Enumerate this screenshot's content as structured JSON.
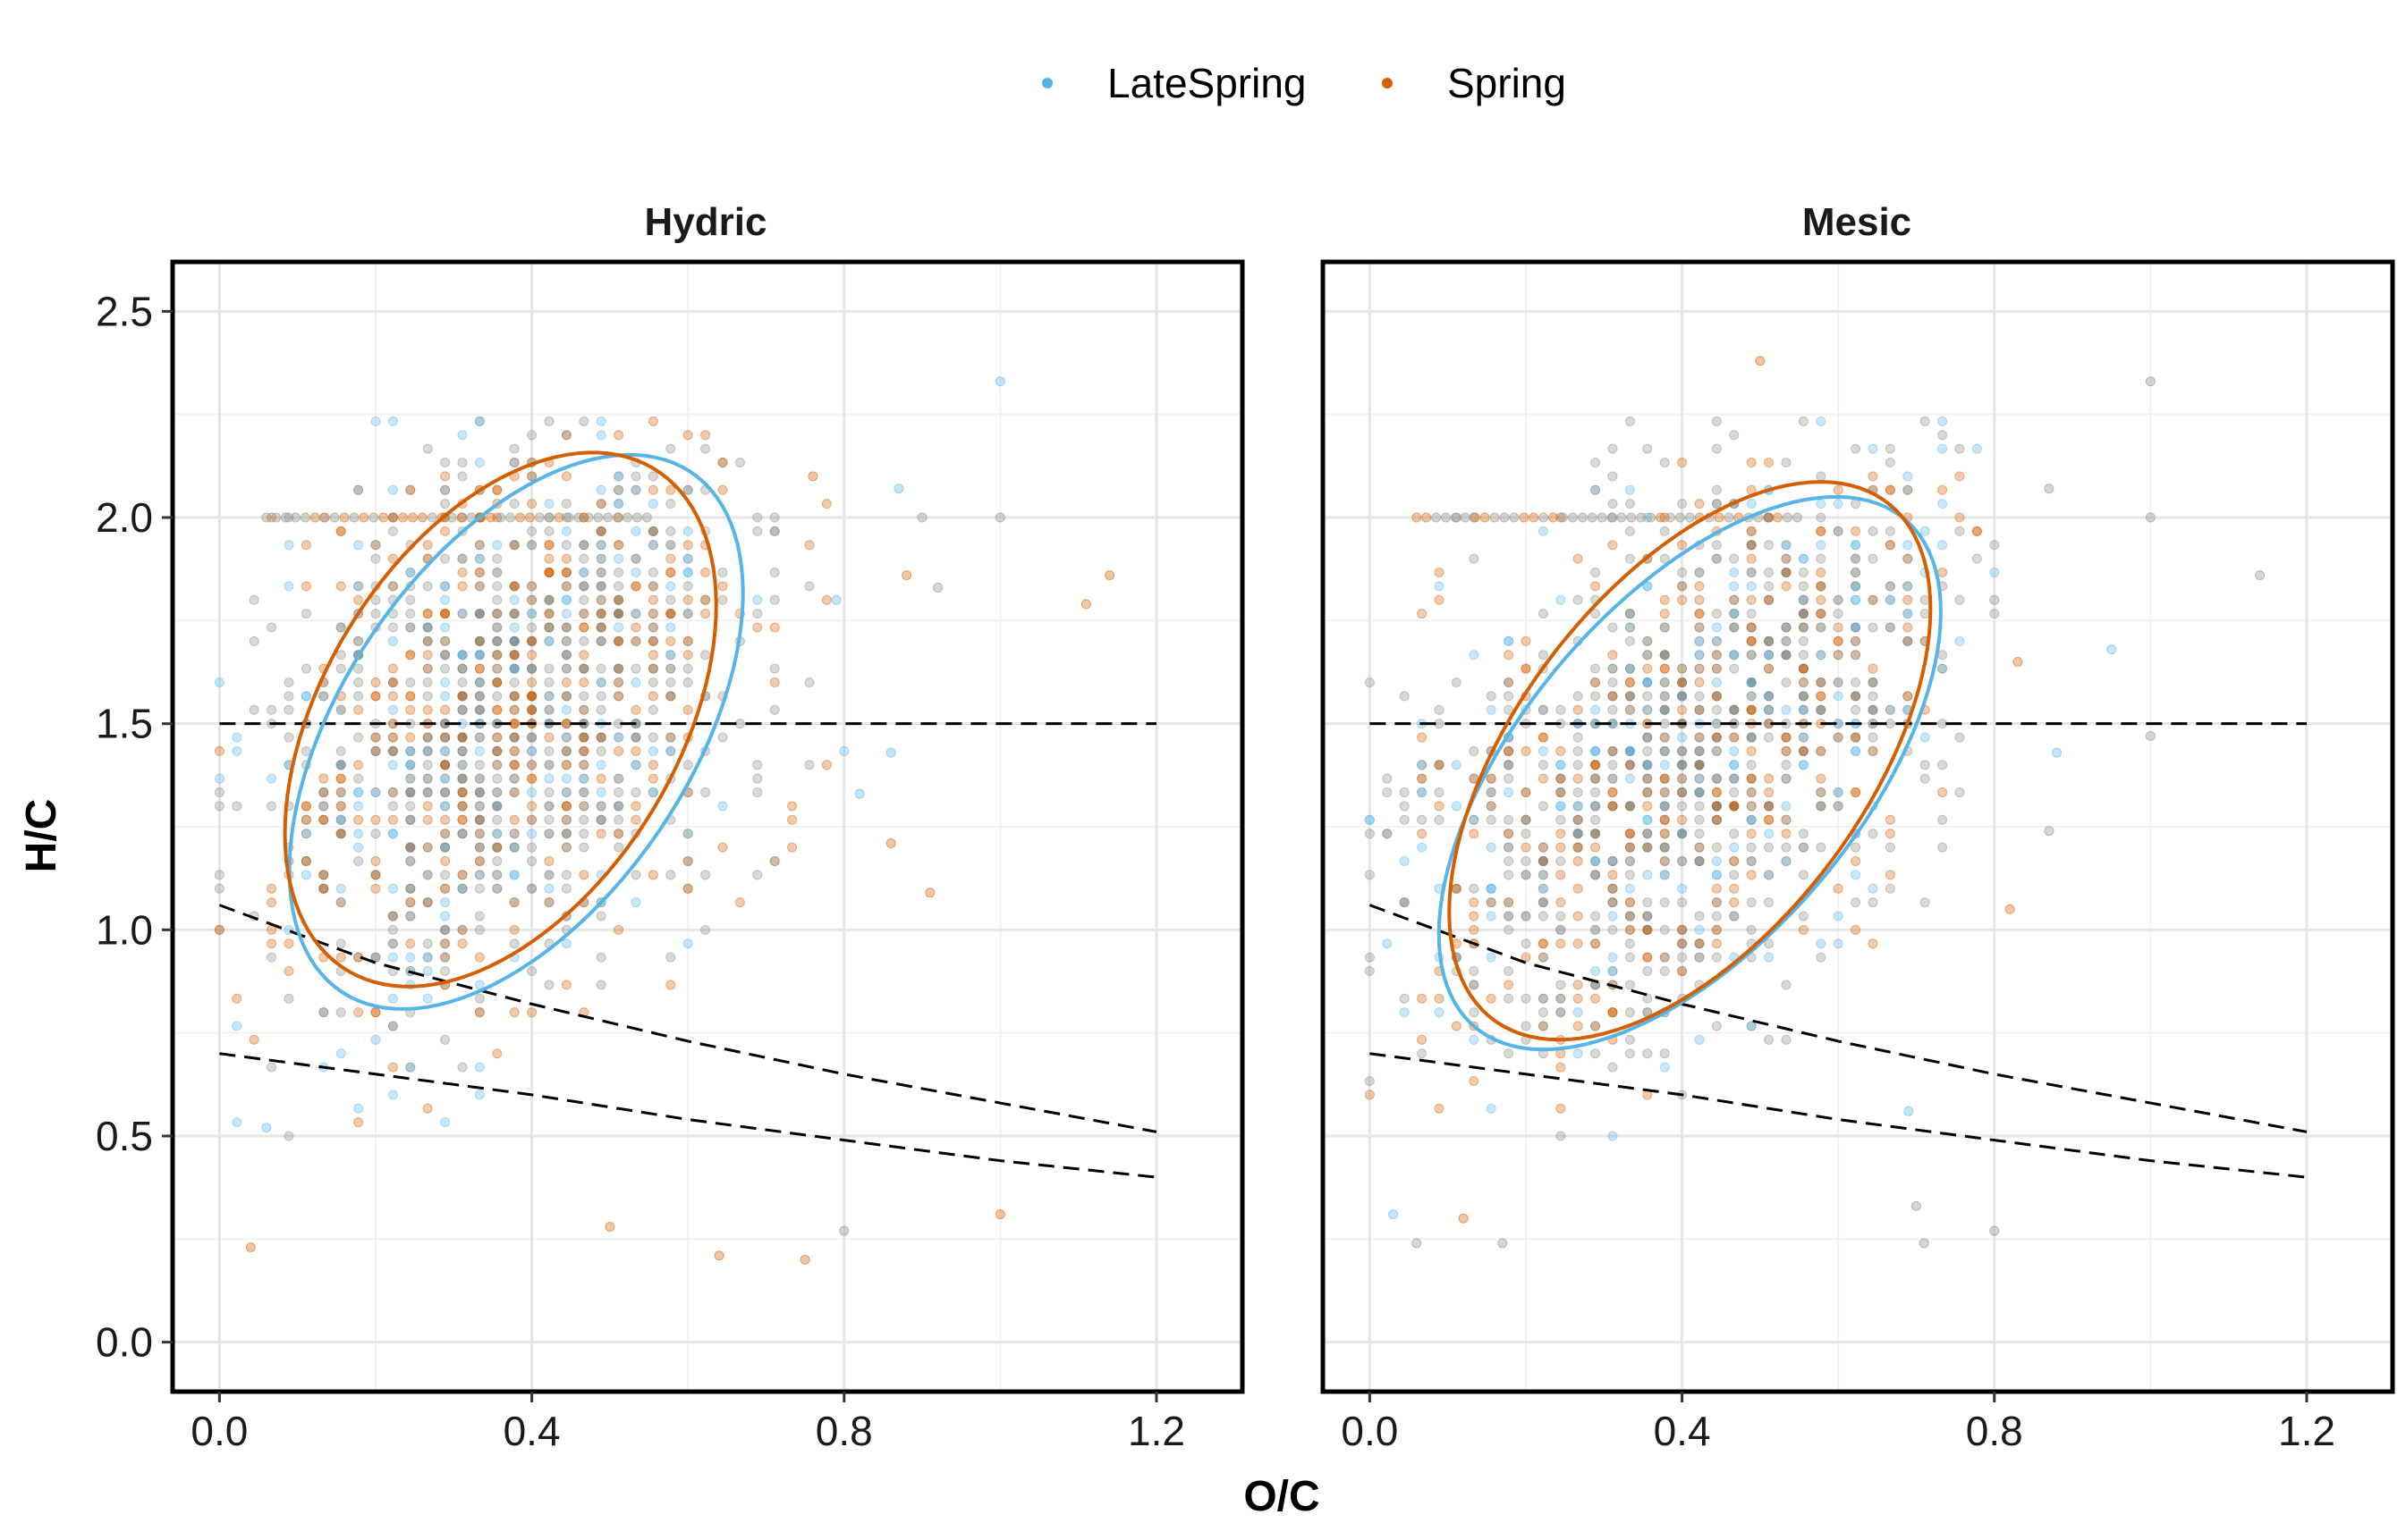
{
  "chart_data": {
    "type": "scatter",
    "xlabel": "O/C",
    "ylabel": "H/C",
    "xlim": [
      -0.06,
      1.31
    ],
    "ylim": [
      -0.12,
      2.62
    ],
    "xticks": [
      0.0,
      0.4,
      0.8,
      1.2
    ],
    "yticks": [
      0.0,
      0.5,
      1.0,
      1.5,
      2.0,
      2.5
    ],
    "xtick_labels": [
      "0.0",
      "0.4",
      "0.8",
      "1.2"
    ],
    "ytick_labels": [
      "0.0",
      "0.5",
      "1.0",
      "1.5",
      "2.0",
      "2.5"
    ],
    "grid": true,
    "legend_position": "top",
    "legend": [
      {
        "label": "LateSpring",
        "color": "#56B4E9"
      },
      {
        "label": "Spring",
        "color": "#D55E00"
      }
    ],
    "overlap_color": "#8a8a80",
    "reference_lines": [
      {
        "name": "horizontal",
        "style": "dashed",
        "x": [
          0.0,
          1.2
        ],
        "y": [
          1.5,
          1.5
        ]
      },
      {
        "name": "upper-boundary",
        "style": "dashed",
        "x": [
          0.0,
          0.2,
          0.4,
          0.6,
          0.8,
          1.0,
          1.2
        ],
        "y": [
          1.06,
          0.92,
          0.82,
          0.73,
          0.65,
          0.58,
          0.51
        ]
      },
      {
        "name": "lower-boundary",
        "style": "dashed",
        "x": [
          0.0,
          0.2,
          0.4,
          0.6,
          0.8,
          1.0,
          1.2
        ],
        "y": [
          0.7,
          0.65,
          0.6,
          0.54,
          0.49,
          0.44,
          0.4
        ]
      }
    ],
    "panels": [
      {
        "title": "Hydric",
        "ellipses": [
          {
            "series": "LateSpring",
            "cx": 0.38,
            "cy": 1.48,
            "rx": 0.245,
            "ry": 0.69,
            "angle_deg": -14
          },
          {
            "series": "Spring",
            "cx": 0.36,
            "cy": 1.51,
            "rx": 0.245,
            "ry": 0.66,
            "angle_deg": -12
          }
        ],
        "points": [
          {
            "series": "LateSpring",
            "x": 1.0,
            "y": 2.33
          },
          {
            "series": "Spring",
            "x": 1.14,
            "y": 1.86
          },
          {
            "series": "Spring",
            "x": 1.11,
            "y": 1.79
          },
          {
            "series": "Spring",
            "x": 0.91,
            "y": 1.09
          },
          {
            "series": "Spring",
            "x": 0.86,
            "y": 1.21
          },
          {
            "series": "LateSpring",
            "x": 0.82,
            "y": 1.33
          },
          {
            "series": "LateSpring",
            "x": 0.86,
            "y": 1.43
          },
          {
            "series": "Spring",
            "x": 1.0,
            "y": 0.31
          },
          {
            "series": "Both",
            "x": 0.8,
            "y": 0.27
          },
          {
            "series": "Spring",
            "x": 0.5,
            "y": 0.28
          },
          {
            "series": "Spring",
            "x": 0.64,
            "y": 0.21
          },
          {
            "series": "Spring",
            "x": 0.75,
            "y": 0.2
          },
          {
            "series": "Spring",
            "x": 0.04,
            "y": 0.23
          },
          {
            "series": "LateSpring",
            "x": 0.06,
            "y": 0.52
          },
          {
            "series": "Both",
            "x": 0.9,
            "y": 2.0
          },
          {
            "series": "Both",
            "x": 1.0,
            "y": 2.0
          },
          {
            "series": "Spring",
            "x": 0.76,
            "y": 2.1
          },
          {
            "series": "LateSpring",
            "x": 0.87,
            "y": 2.07
          },
          {
            "series": "Spring",
            "x": 0.88,
            "y": 1.86
          },
          {
            "series": "Both",
            "x": 0.92,
            "y": 1.83
          },
          {
            "series": "LateSpring",
            "x": 0.79,
            "y": 1.8
          }
        ]
      },
      {
        "title": "Mesic",
        "ellipses": [
          {
            "series": "LateSpring",
            "cx": 0.41,
            "cy": 1.38,
            "rx": 0.25,
            "ry": 0.7,
            "angle_deg": -18
          },
          {
            "series": "Spring",
            "cx": 0.41,
            "cy": 1.41,
            "rx": 0.25,
            "ry": 0.7,
            "angle_deg": -16
          }
        ],
        "points": [
          {
            "series": "Both",
            "x": 1.0,
            "y": 2.33
          },
          {
            "series": "Spring",
            "x": 0.5,
            "y": 2.38
          },
          {
            "series": "Both",
            "x": 1.14,
            "y": 1.86
          },
          {
            "series": "LateSpring",
            "x": 0.95,
            "y": 1.68
          },
          {
            "series": "Spring",
            "x": 0.83,
            "y": 1.65
          },
          {
            "series": "Both",
            "x": 0.87,
            "y": 2.07
          },
          {
            "series": "Both",
            "x": 1.0,
            "y": 2.0
          },
          {
            "series": "Both",
            "x": 0.8,
            "y": 1.8
          },
          {
            "series": "LateSpring",
            "x": 0.88,
            "y": 1.43
          },
          {
            "series": "Both",
            "x": 0.87,
            "y": 1.24
          },
          {
            "series": "Spring",
            "x": 0.82,
            "y": 1.05
          },
          {
            "series": "Both",
            "x": 0.8,
            "y": 0.27
          },
          {
            "series": "Both",
            "x": 0.7,
            "y": 0.33
          },
          {
            "series": "Both",
            "x": 0.71,
            "y": 0.24
          },
          {
            "series": "Both",
            "x": 0.17,
            "y": 0.24
          },
          {
            "series": "Spring",
            "x": 0.12,
            "y": 0.3
          },
          {
            "series": "LateSpring",
            "x": 0.03,
            "y": 0.31
          },
          {
            "series": "Both",
            "x": 0.06,
            "y": 0.24
          },
          {
            "series": "Both",
            "x": 1.0,
            "y": 1.47
          },
          {
            "series": "LateSpring",
            "x": 0.69,
            "y": 0.56
          }
        ]
      }
    ]
  }
}
